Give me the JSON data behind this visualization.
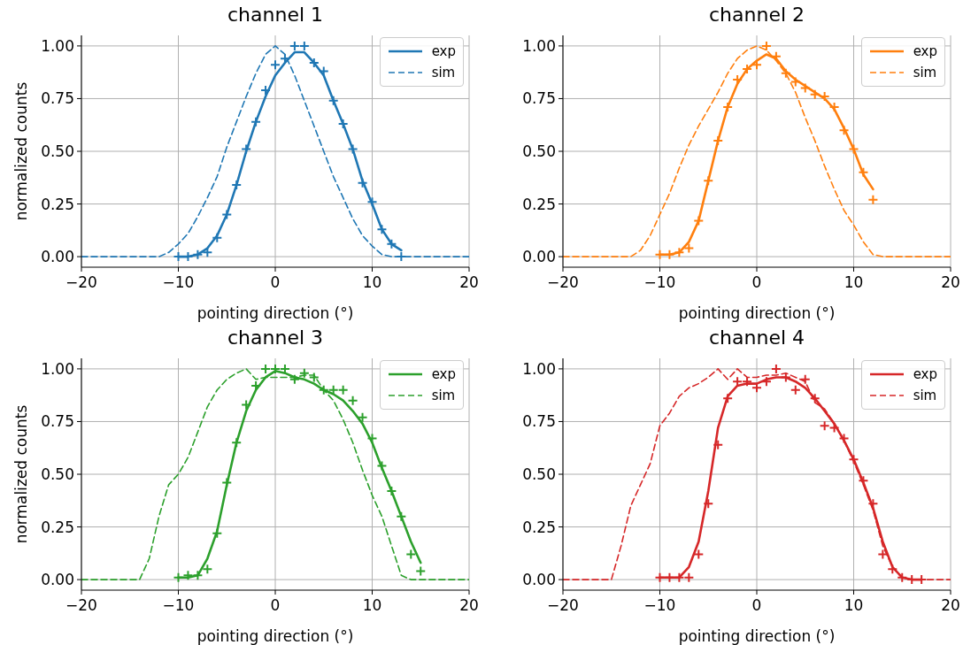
{
  "chart_data": [
    {
      "type": "line",
      "title": "channel 1",
      "xlabel": "pointing direction (°)",
      "ylabel": "normalized counts",
      "xlim": [
        -20,
        20
      ],
      "ylim": [
        -0.05,
        1.05
      ],
      "xticks": [
        -20,
        -10,
        0,
        10,
        20
      ],
      "yticks": [
        {
          "value": 0,
          "label": "0.00"
        },
        {
          "value": 0.25,
          "label": "0.25"
        },
        {
          "value": 0.5,
          "label": "0.50"
        },
        {
          "value": 0.75,
          "label": "0.75"
        },
        {
          "value": 1,
          "label": "1.00"
        }
      ],
      "grid": true,
      "legend": "top right",
      "series": [
        {
          "name": "exp",
          "color": "#1f77b4",
          "line_style": "solid",
          "marker": "none",
          "x": [
            -10,
            -9,
            -8,
            -7,
            -6,
            -5,
            -4,
            -3,
            -2,
            -1,
            0,
            1,
            2,
            3,
            4,
            5,
            6,
            7,
            8,
            9,
            10,
            11,
            12,
            13
          ],
          "values": [
            0,
            0,
            0.01,
            0.04,
            0.1,
            0.2,
            0.34,
            0.5,
            0.64,
            0.76,
            0.86,
            0.92,
            0.97,
            0.97,
            0.92,
            0.86,
            0.74,
            0.63,
            0.51,
            0.36,
            0.25,
            0.13,
            0.06,
            0.03
          ]
        },
        {
          "name": "sim",
          "color": "#1f77b4",
          "line_style": "dashed",
          "marker": "none",
          "x": [
            -20,
            -12,
            -11,
            -10,
            -9,
            -8,
            -7,
            -6,
            -5,
            -4,
            -3,
            -2,
            -1,
            0,
            1,
            2,
            3,
            4,
            5,
            6,
            7,
            8,
            9,
            10,
            11,
            12,
            20
          ],
          "values": [
            0,
            0,
            0.02,
            0.06,
            0.11,
            0.19,
            0.28,
            0.38,
            0.52,
            0.64,
            0.76,
            0.87,
            0.96,
            1.0,
            0.96,
            0.86,
            0.74,
            0.62,
            0.5,
            0.38,
            0.28,
            0.18,
            0.1,
            0.05,
            0.01,
            0,
            0
          ]
        },
        {
          "type": "scatter",
          "color": "#1f77b4",
          "marker": "cross",
          "x": [
            -10,
            -9,
            -8,
            -7,
            -6,
            -5,
            -4,
            -3,
            -2,
            -1,
            0,
            1,
            2,
            3,
            4,
            5,
            6,
            7,
            8,
            9,
            10,
            11,
            12,
            13
          ],
          "values": [
            0,
            0,
            0.01,
            0.02,
            0.09,
            0.2,
            0.34,
            0.51,
            0.64,
            0.79,
            0.91,
            0.94,
            1.0,
            1.0,
            0.92,
            0.88,
            0.74,
            0.63,
            0.51,
            0.35,
            0.26,
            0.13,
            0.06,
            0.0
          ]
        }
      ]
    },
    {
      "type": "line",
      "title": "channel 2",
      "xlabel": "pointing direction (°)",
      "xlim": [
        -20,
        20
      ],
      "ylim": [
        -0.05,
        1.05
      ],
      "xticks": [
        -20,
        -10,
        0,
        10,
        20
      ],
      "yticks": [
        {
          "value": 0,
          "label": "0.00"
        },
        {
          "value": 0.25,
          "label": "0.25"
        },
        {
          "value": 0.5,
          "label": "0.50"
        },
        {
          "value": 0.75,
          "label": "0.75"
        },
        {
          "value": 1,
          "label": "1.00"
        }
      ],
      "grid": true,
      "legend": "top right",
      "series": [
        {
          "name": "exp",
          "color": "#ff7f0e",
          "line_style": "solid",
          "marker": "none",
          "x": [
            -10,
            -9,
            -8,
            -7,
            -6,
            -5,
            -4,
            -3,
            -2,
            -1,
            0,
            1,
            2,
            3,
            4,
            5,
            6,
            7,
            8,
            9,
            10,
            11,
            12
          ],
          "values": [
            0.01,
            0.01,
            0.02,
            0.07,
            0.17,
            0.36,
            0.55,
            0.71,
            0.82,
            0.89,
            0.93,
            0.96,
            0.94,
            0.88,
            0.84,
            0.81,
            0.78,
            0.75,
            0.7,
            0.61,
            0.51,
            0.39,
            0.32
          ]
        },
        {
          "name": "sim",
          "color": "#ff7f0e",
          "line_style": "dashed",
          "marker": "none",
          "x": [
            -20,
            -13,
            -12,
            -11,
            -10,
            -9,
            -8,
            -7,
            -6,
            -5,
            -4,
            -3,
            -2,
            -1,
            0,
            1,
            2,
            3,
            4,
            5,
            6,
            7,
            8,
            9,
            10,
            11,
            12,
            13,
            20
          ],
          "values": [
            0,
            0,
            0.03,
            0.1,
            0.2,
            0.3,
            0.42,
            0.53,
            0.62,
            0.7,
            0.78,
            0.87,
            0.94,
            0.98,
            1.0,
            0.98,
            0.93,
            0.87,
            0.78,
            0.66,
            0.55,
            0.43,
            0.32,
            0.22,
            0.15,
            0.07,
            0.01,
            0,
            0
          ]
        },
        {
          "type": "scatter",
          "color": "#ff7f0e",
          "marker": "cross",
          "x": [
            -10,
            -9,
            -8,
            -7,
            -6,
            -5,
            -4,
            -3,
            -2,
            -1,
            0,
            1,
            2,
            3,
            4,
            5,
            6,
            7,
            8,
            9,
            10,
            11,
            12
          ],
          "values": [
            0.01,
            0.01,
            0.02,
            0.04,
            0.17,
            0.36,
            0.55,
            0.71,
            0.84,
            0.89,
            0.91,
            1.0,
            0.95,
            0.87,
            0.83,
            0.8,
            0.77,
            0.76,
            0.71,
            0.6,
            0.51,
            0.4,
            0.27
          ]
        }
      ]
    },
    {
      "type": "line",
      "title": "channel 3",
      "xlabel": "pointing direction (°)",
      "ylabel": "normalized counts",
      "xlim": [
        -20,
        20
      ],
      "ylim": [
        -0.05,
        1.05
      ],
      "xticks": [
        -20,
        -10,
        0,
        10,
        20
      ],
      "yticks": [
        {
          "value": 0,
          "label": "0.00"
        },
        {
          "value": 0.25,
          "label": "0.25"
        },
        {
          "value": 0.5,
          "label": "0.50"
        },
        {
          "value": 0.75,
          "label": "0.75"
        },
        {
          "value": 1,
          "label": "1.00"
        }
      ],
      "grid": true,
      "legend": "top right",
      "series": [
        {
          "name": "exp",
          "color": "#2ca02c",
          "line_style": "solid",
          "marker": "none",
          "x": [
            -10,
            -9,
            -8,
            -7,
            -6,
            -5,
            -4,
            -3,
            -2,
            -1,
            0,
            1,
            2,
            3,
            4,
            5,
            6,
            7,
            8,
            9,
            10,
            11,
            12,
            13,
            14,
            15
          ],
          "values": [
            0.01,
            0.01,
            0.02,
            0.1,
            0.23,
            0.45,
            0.65,
            0.8,
            0.9,
            0.96,
            0.99,
            0.98,
            0.96,
            0.95,
            0.93,
            0.9,
            0.88,
            0.85,
            0.8,
            0.74,
            0.65,
            0.53,
            0.42,
            0.3,
            0.18,
            0.08
          ]
        },
        {
          "name": "sim",
          "color": "#2ca02c",
          "line_style": "dashed",
          "marker": "none",
          "x": [
            -20,
            -14,
            -13,
            -12,
            -11,
            -10,
            -9,
            -8,
            -7,
            -6,
            -5,
            -4,
            -3,
            -2,
            -1,
            0,
            1,
            2,
            3,
            4,
            5,
            6,
            7,
            8,
            9,
            10,
            11,
            12,
            13,
            14,
            20
          ],
          "values": [
            0,
            0,
            0.1,
            0.3,
            0.45,
            0.5,
            0.58,
            0.7,
            0.82,
            0.9,
            0.95,
            0.98,
            1.0,
            0.95,
            0.96,
            0.96,
            0.96,
            0.96,
            0.97,
            0.97,
            0.9,
            0.85,
            0.76,
            0.65,
            0.52,
            0.4,
            0.3,
            0.16,
            0.02,
            0,
            0
          ]
        },
        {
          "type": "scatter",
          "color": "#2ca02c",
          "marker": "cross",
          "x": [
            -10,
            -9,
            -8,
            -7,
            -6,
            -5,
            -4,
            -3,
            -2,
            -1,
            0,
            1,
            2,
            3,
            4,
            5,
            6,
            7,
            8,
            9,
            10,
            11,
            12,
            13,
            14,
            15
          ],
          "values": [
            0.01,
            0.02,
            0.02,
            0.05,
            0.22,
            0.46,
            0.65,
            0.83,
            0.92,
            1.0,
            1.0,
            1.0,
            0.95,
            0.98,
            0.96,
            0.9,
            0.9,
            0.9,
            0.85,
            0.77,
            0.67,
            0.54,
            0.42,
            0.3,
            0.12,
            0.04
          ]
        }
      ]
    },
    {
      "type": "line",
      "title": "channel 4",
      "xlabel": "pointing direction (°)",
      "xlim": [
        -20,
        20
      ],
      "ylim": [
        -0.05,
        1.05
      ],
      "xticks": [
        -20,
        -10,
        0,
        10,
        20
      ],
      "yticks": [
        {
          "value": 0,
          "label": "0.00"
        },
        {
          "value": 0.25,
          "label": "0.25"
        },
        {
          "value": 0.5,
          "label": "0.50"
        },
        {
          "value": 0.75,
          "label": "0.75"
        },
        {
          "value": 1,
          "label": "1.00"
        }
      ],
      "grid": true,
      "legend": "top right",
      "series": [
        {
          "name": "exp",
          "color": "#d62728",
          "line_style": "solid",
          "marker": "none",
          "x": [
            -10,
            -9,
            -8,
            -7,
            -6,
            -5,
            -4,
            -3,
            -2,
            -1,
            0,
            1,
            2,
            3,
            4,
            5,
            6,
            7,
            8,
            9,
            10,
            11,
            12,
            13,
            14,
            15,
            16,
            17
          ],
          "values": [
            0.01,
            0.01,
            0.01,
            0.06,
            0.18,
            0.42,
            0.72,
            0.87,
            0.92,
            0.93,
            0.93,
            0.95,
            0.96,
            0.96,
            0.94,
            0.91,
            0.86,
            0.8,
            0.74,
            0.66,
            0.57,
            0.46,
            0.34,
            0.18,
            0.06,
            0.01,
            0,
            0
          ]
        },
        {
          "name": "sim",
          "color": "#d62728",
          "line_style": "dashed",
          "marker": "none",
          "x": [
            -20,
            -15,
            -14,
            -13,
            -12,
            -11,
            -10,
            -9,
            -8,
            -7,
            -6,
            -5,
            -4,
            -3,
            -2,
            -1,
            0,
            1,
            2,
            3,
            4,
            5,
            6,
            7,
            8,
            9,
            10,
            11,
            12,
            13,
            14,
            15,
            16,
            20
          ],
          "values": [
            0,
            0,
            0.16,
            0.35,
            0.45,
            0.55,
            0.73,
            0.79,
            0.87,
            0.91,
            0.93,
            0.96,
            1.0,
            0.95,
            1.0,
            0.96,
            0.96,
            0.97,
            0.97,
            0.98,
            0.96,
            0.94,
            0.84,
            0.81,
            0.74,
            0.66,
            0.56,
            0.45,
            0.33,
            0.16,
            0.06,
            0.01,
            0,
            0
          ]
        },
        {
          "type": "scatter",
          "color": "#d62728",
          "marker": "cross",
          "x": [
            -10,
            -9,
            -8,
            -7,
            -6,
            -5,
            -4,
            -3,
            -2,
            -1,
            0,
            1,
            2,
            3,
            4,
            5,
            6,
            7,
            8,
            9,
            10,
            11,
            12,
            13,
            14,
            15,
            16,
            17
          ],
          "values": [
            0.01,
            0.01,
            0.01,
            0.01,
            0.12,
            0.36,
            0.64,
            0.86,
            0.94,
            0.94,
            0.91,
            0.94,
            1.0,
            0.96,
            0.9,
            0.95,
            0.86,
            0.73,
            0.72,
            0.67,
            0.57,
            0.47,
            0.36,
            0.12,
            0.05,
            0.01,
            0,
            0
          ]
        }
      ]
    }
  ]
}
